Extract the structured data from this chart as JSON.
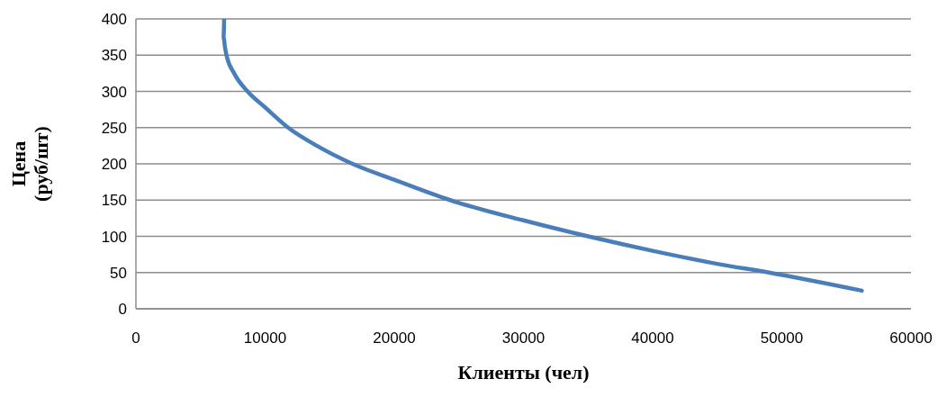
{
  "chart_data": {
    "type": "line",
    "xlabel": "Клиенты (чел)",
    "ylabel": "Цена (руб/шт)",
    "x": [
      6830,
      6780,
      6900,
      7010,
      7600,
      8640,
      10000,
      11780,
      14000,
      16770,
      20000,
      24320,
      30000,
      35000,
      40000,
      45000,
      49000,
      56200
    ],
    "series": [
      {
        "color": "#4a7ebb",
        "values": [
          400,
          375,
          360,
          350,
          325,
          300,
          278,
          250,
          225,
          200,
          178,
          150,
          122,
          100,
          80,
          62,
          50,
          25
        ]
      }
    ],
    "xlim": [
      0,
      60000
    ],
    "xticks": [
      0,
      10000,
      20000,
      30000,
      40000,
      50000,
      60000
    ],
    "ylim": [
      0,
      400
    ],
    "yticks": [
      0,
      50,
      100,
      150,
      200,
      250,
      300,
      350,
      400
    ],
    "grid": "y",
    "marker": "none",
    "line_style": "solid"
  }
}
